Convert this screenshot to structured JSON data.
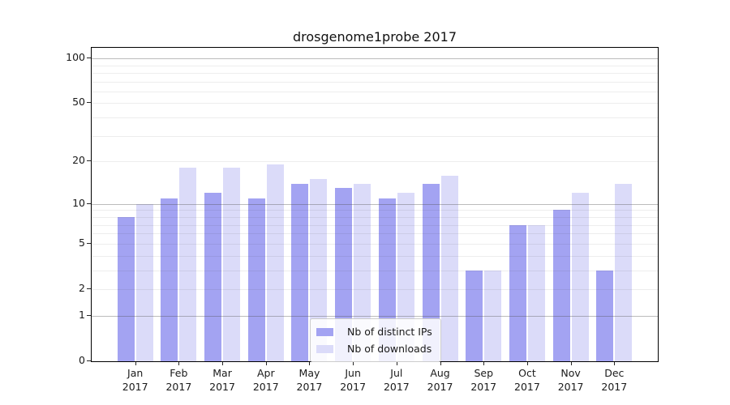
{
  "chart_data": {
    "type": "bar",
    "title": "drosgenome1probe 2017",
    "categories": [
      "Jan",
      "Feb",
      "Mar",
      "Apr",
      "May",
      "Jun",
      "Jul",
      "Aug",
      "Sep",
      "Oct",
      "Nov",
      "Dec"
    ],
    "category_year": "2017",
    "series": [
      {
        "name": "Nb of distinct IPs",
        "color": "#a3a3f2",
        "values": [
          8,
          11,
          12,
          11,
          14,
          13,
          11,
          14,
          3,
          7,
          9,
          3
        ]
      },
      {
        "name": "Nb of downloads",
        "color": "#dbdbf9",
        "values": [
          10,
          18,
          18,
          19,
          15,
          14,
          12,
          16,
          3,
          7,
          12,
          14
        ]
      }
    ],
    "xlabel": "",
    "ylabel": "",
    "yscale": "log1p",
    "ylim": [
      0,
      117.8
    ],
    "ytick_values": [
      0,
      1,
      2,
      5,
      10,
      20,
      50,
      100
    ],
    "ytick_labels": [
      "0",
      "1",
      "2",
      "5",
      "10",
      "20",
      "50",
      "100"
    ],
    "major_gridline_values": [
      1,
      10,
      100
    ],
    "minor_gridline_values": [
      2,
      3,
      4,
      5,
      6,
      7,
      8,
      9,
      20,
      30,
      40,
      50,
      60,
      70,
      80,
      90
    ],
    "grid": true,
    "legend_position": "lower center"
  },
  "colors": {
    "major_grid": "rgba(80,80,80,0.38)",
    "minor_grid": "rgba(60,60,60,0.09)",
    "spine": "#000000",
    "tick": "#262626",
    "text": "#1a1a1a",
    "legend_bg": "rgba(255,255,255,0.85)",
    "legend_border": "#cccccc"
  }
}
